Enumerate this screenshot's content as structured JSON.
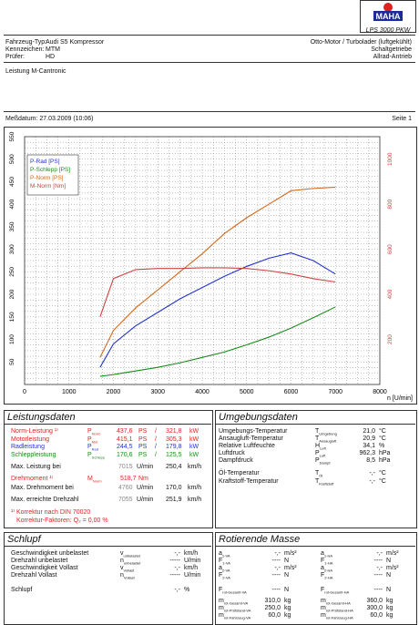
{
  "header": {
    "model": "LPS 3000 PKW",
    "vehicle_label": "Fahrzeug-Typ:",
    "vehicle_value": "Audi S5 Kompressor",
    "plate_label": "Kennzeichen:",
    "plate_value": "MTM",
    "tester_label": "Prüfer:",
    "tester_value": "HD",
    "engine_type": "Otto-Motor / Turbolader (luftgekühlt)",
    "gearbox": "Schaltgetriebe",
    "drive": "Allrad-Antrieb",
    "note": "Leistung M-Cantronic",
    "date_label": "Meßdatum: 27.03.2009 (10:06)",
    "page_label": "Seite 1"
  },
  "chart_data": {
    "type": "line",
    "xlabel": "n [U/min]",
    "xlim": [
      0,
      8000
    ],
    "ylim_left": [
      0,
      550
    ],
    "ylim_right": [
      0,
      1100
    ],
    "x_ticks": [
      "0",
      "1000",
      "2000",
      "3000",
      "4000",
      "5000",
      "6000",
      "7000",
      "8000"
    ],
    "y_left_ticks": [
      "50",
      "100",
      "150",
      "200",
      "250",
      "300",
      "350",
      "400",
      "450",
      "500",
      "550"
    ],
    "y_right_ticks": [
      "200",
      "400",
      "600",
      "800",
      "1000"
    ],
    "series": [
      {
        "name": "P-Rad [PS]",
        "color": "#2233cc",
        "axis": "left",
        "x": [
          1700,
          2000,
          2500,
          3000,
          3500,
          4000,
          4500,
          5000,
          5500,
          6000,
          6500,
          7000
        ],
        "y": [
          38,
          90,
          130,
          160,
          190,
          215,
          240,
          262,
          280,
          292,
          275,
          245
        ]
      },
      {
        "name": "P-Schlepp [PS]",
        "color": "#1a8a1a",
        "axis": "left",
        "x": [
          1700,
          2000,
          2500,
          3000,
          3500,
          4000,
          4500,
          5000,
          5500,
          6000,
          6500,
          7000
        ],
        "y": [
          18,
          22,
          30,
          38,
          48,
          60,
          72,
          88,
          105,
          125,
          148,
          172
        ]
      },
      {
        "name": "P-Norm [PS]",
        "color": "#d2691e",
        "axis": "left",
        "x": [
          1700,
          2000,
          2500,
          3000,
          3500,
          4000,
          4500,
          5000,
          5500,
          6000,
          6500,
          7000
        ],
        "y": [
          60,
          120,
          170,
          210,
          250,
          290,
          335,
          370,
          400,
          430,
          435,
          438
        ]
      },
      {
        "name": "M-Norm [Nm]",
        "color": "#cc4444",
        "axis": "right",
        "x": [
          1700,
          2000,
          2500,
          3000,
          3500,
          4000,
          4500,
          5000,
          5500,
          6000,
          6500,
          7000
        ],
        "y": [
          300,
          470,
          510,
          515,
          515,
          518,
          518,
          515,
          505,
          490,
          470,
          455
        ]
      }
    ]
  },
  "leistung": {
    "title": "Leistungsdaten",
    "rows": [
      {
        "label": "Norm-Leistung ¹⁾",
        "sym": "P",
        "sub": "Norm",
        "v1": "437,6",
        "u1": "PS",
        "v2": "321,8",
        "u2": "kW",
        "cls": "red"
      },
      {
        "label": "Motorleistung",
        "sym": "P",
        "sub": "Mot",
        "v1": "415,1",
        "u1": "PS",
        "v2": "305,3",
        "u2": "kW",
        "cls": "red"
      },
      {
        "label": "Radleistung",
        "sym": "P",
        "sub": "Rad",
        "v1": "244,5",
        "u1": "PS",
        "v2": "179,8",
        "u2": "kW",
        "cls": "blue"
      },
      {
        "label": "Schleppleistung",
        "sym": "P",
        "sub": "Schlepp",
        "v1": "170,6",
        "u1": "PS",
        "v2": "125,5",
        "u2": "kW",
        "cls": "green"
      }
    ],
    "max_label": "Max. Leistung bei",
    "max_rpm": "7015",
    "max_rpm_unit": "U/min",
    "max_speed": "250,4",
    "max_speed_unit": "km/h",
    "dreh_label": "Drehmoment ¹⁾",
    "dreh_sym": "M",
    "dreh_sub": "Norm",
    "dreh_val": "518,7",
    "dreh_unit": "Nm",
    "maxdreh_label": "Max. Drehmoment bei",
    "maxdreh_rpm": "4760",
    "maxdreh_rpm_unit": "U/min",
    "maxdreh_speed": "170,0",
    "maxdreh_speed_unit": "km/h",
    "maxrpm_label": "Max. erreichte Drehzahl",
    "maxrpm_val": "7055",
    "maxrpm_unit": "U/min",
    "maxrpm_speed": "251,9",
    "maxrpm_speed_unit": "km/h",
    "korr1": "¹⁾ Korrektur nach DIN 70020",
    "korr2": "Korrektur-Faktoren: Q₂ = 0,00 %"
  },
  "umgebung": {
    "title": "Umgebungsdaten",
    "rows": [
      {
        "label": "Umgebungs-Temperatur",
        "sym": "T",
        "sub": "Umgebung",
        "val": "21,0",
        "unit": "°C"
      },
      {
        "label": "Ansaugluft-Temperatur",
        "sym": "T",
        "sub": "Ansaugluft",
        "val": "20,9",
        "unit": "°C"
      },
      {
        "label": "Relative Luftfeuchte",
        "sym": "H",
        "sub": "Luft",
        "val": "34,1",
        "unit": "%"
      },
      {
        "label": "Luftdruck",
        "sym": "P",
        "sub": "Luft",
        "val": "962,3",
        "unit": "hPa"
      },
      {
        "label": "Dampfdruck",
        "sym": "P",
        "sub": "Dampf",
        "val": "8,5",
        "unit": "hPa"
      },
      {
        "label": "Öl-Temperatur",
        "sym": "T",
        "sub": "Öl",
        "val": "-,-",
        "unit": "°C"
      },
      {
        "label": "Kraftstoff-Temperatur",
        "sym": "T",
        "sub": "Kraftstoff",
        "val": "-,-",
        "unit": "°C"
      }
    ]
  },
  "schlupf": {
    "title": "Schlupf",
    "rows": [
      {
        "label": "Geschwindigkeit unbelastet",
        "sym": "v",
        "sub": "unbelastet",
        "val": "-,-",
        "unit": "km/h"
      },
      {
        "label": "Drehzahl unbelastet",
        "sym": "n",
        "sub": "unbelastet",
        "val": "-----",
        "unit": "U/min"
      },
      {
        "label": "Geschwindigkeit Vollast",
        "sym": "v",
        "sub": "Vollast",
        "val": "-,-",
        "unit": "km/h"
      },
      {
        "label": "Drehzahl Vollast",
        "sym": "n",
        "sub": "Vollast",
        "val": "-----",
        "unit": "U/min"
      },
      {
        "label": "Schlupf",
        "sym": "",
        "sub": "",
        "val": "-,-",
        "unit": "%"
      }
    ]
  },
  "masse": {
    "title": "Rotierende Masse",
    "left": [
      {
        "sym": "a",
        "sub": "1-VA",
        "val": "-,-",
        "unit": "m/s²"
      },
      {
        "sym": "F",
        "sub": "1-VA",
        "val": "----",
        "unit": "N"
      },
      {
        "sym": "a",
        "sub": "2-VA",
        "val": "-,-",
        "unit": "m/s²"
      },
      {
        "sym": "F",
        "sub": "2-VA",
        "val": "----",
        "unit": "N"
      },
      {
        "sym": "F",
        "sub": "rot-Gesamt-VA",
        "val": "----",
        "unit": "N"
      },
      {
        "sym": "m",
        "sub": "rot-Gesamt-VA",
        "val": "310,0",
        "unit": "kg"
      },
      {
        "sym": "m",
        "sub": "rot-Prüfstand-VA",
        "val": "250,0",
        "unit": "kg"
      },
      {
        "sym": "m",
        "sub": "rot-Fahrzeug-VA",
        "val": "60,0",
        "unit": "kg"
      }
    ],
    "right": [
      {
        "sym": "a",
        "sub": "1-HA",
        "val": "-,-",
        "unit": "m/s²"
      },
      {
        "sym": "F",
        "sub": "1-HA",
        "val": "----",
        "unit": "N"
      },
      {
        "sym": "a",
        "sub": "2-HA",
        "val": "-,-",
        "unit": "m/s²"
      },
      {
        "sym": "F",
        "sub": "2-HA",
        "val": "----",
        "unit": "N"
      },
      {
        "sym": "F",
        "sub": "rot-Gesamt-HA",
        "val": "----",
        "unit": "N"
      },
      {
        "sym": "m",
        "sub": "rot-Gesamt-HA",
        "val": "360,0",
        "unit": "kg"
      },
      {
        "sym": "m",
        "sub": "rot-Prüfstand-HA",
        "val": "300,0",
        "unit": "kg"
      },
      {
        "sym": "m",
        "sub": "rot-Fahrzeug-HA",
        "val": "60,0",
        "unit": "kg"
      }
    ]
  }
}
